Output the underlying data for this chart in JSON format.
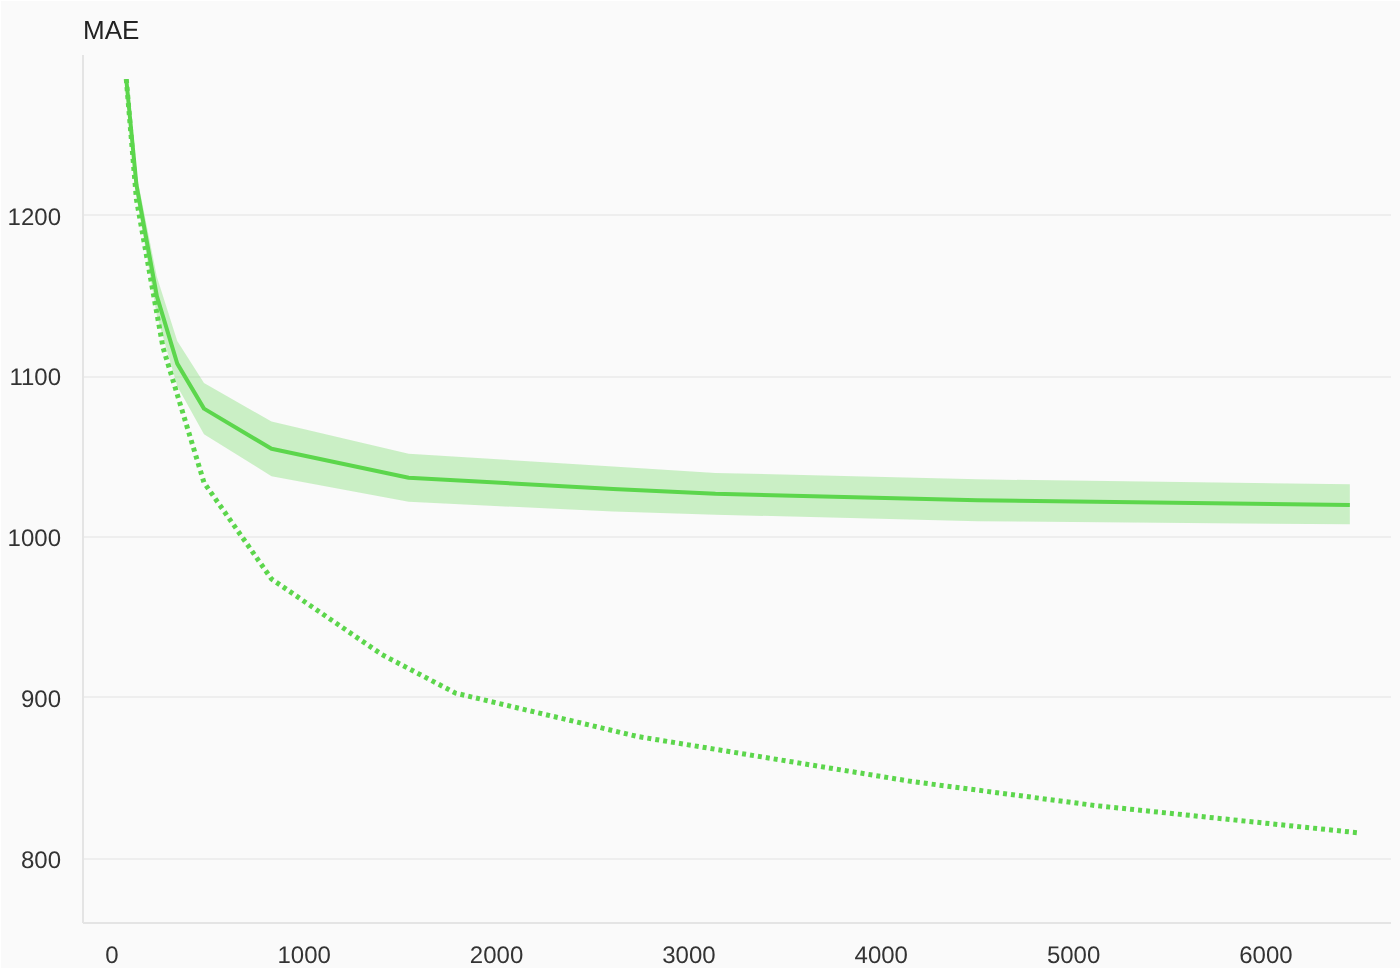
{
  "chart_data": {
    "type": "line",
    "ylabel": "MAE",
    "xlim": [
      -150,
      6650
    ],
    "ylim": [
      760,
      1300
    ],
    "xticks": [
      0,
      1000,
      2000,
      3000,
      4000,
      5000,
      6000
    ],
    "yticks": [
      800,
      900,
      1000,
      1100,
      1200
    ],
    "grid": "y",
    "series": [
      {
        "color": "#5cd64c",
        "line_style": "solid",
        "x": [
          75,
          128,
          234,
          340,
          479,
          830,
          1543,
          2606,
          3138,
          4500,
          6436
        ],
        "values": [
          1285,
          1219,
          1150,
          1108,
          1080,
          1055,
          1037,
          1030,
          1027,
          1023,
          1020
        ],
        "lower": [
          1285,
          1212,
          1138,
          1094,
          1064,
          1038,
          1022,
          1016,
          1014,
          1010,
          1008
        ],
        "upper": [
          1285,
          1226,
          1162,
          1122,
          1096,
          1072,
          1052,
          1044,
          1040,
          1036,
          1033
        ]
      },
      {
        "color": "#5cd64c",
        "line_style": "dotted",
        "x": [
          75,
          128,
          266,
          479,
          830,
          1404,
          1787,
          2734,
          4160,
          5117,
          6489
        ],
        "values": [
          1285,
          1210,
          1118,
          1034,
          974,
          927,
          903,
          876,
          848,
          833,
          816
        ]
      }
    ]
  }
}
